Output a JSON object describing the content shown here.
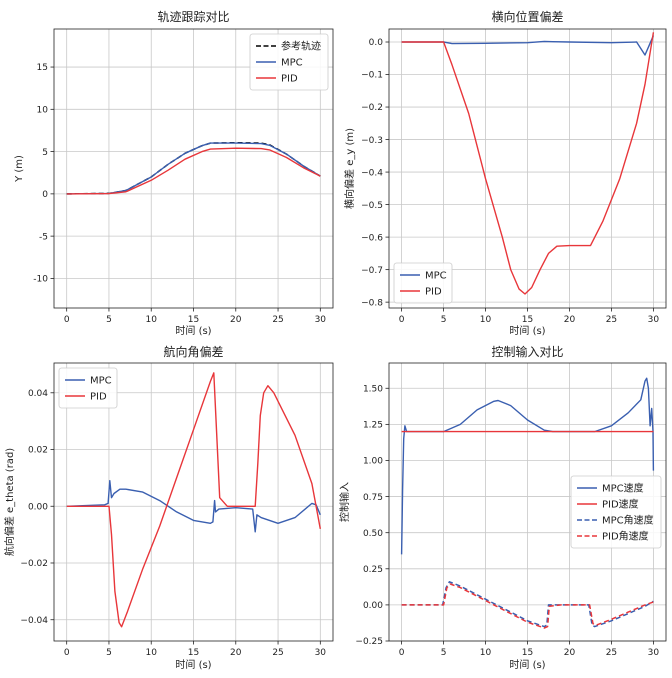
{
  "chart_data": [
    {
      "type": "line",
      "title": "轨迹跟踪对比",
      "xlabel": "时间 (s)",
      "ylabel": "Y (m)",
      "xlim": [
        -1.5,
        31.5
      ],
      "ylim": [
        -13.5,
        19.5
      ],
      "xticks": [
        0,
        5,
        10,
        15,
        20,
        25,
        30
      ],
      "yticks": [
        -10,
        -5,
        0,
        5,
        10,
        15
      ],
      "legend": "top-right",
      "series": [
        {
          "name": "参考轨迹",
          "color": "#000000",
          "dash": "dashed",
          "points": [
            [
              0,
              0
            ],
            [
              5,
              0.05
            ],
            [
              7,
              0.4
            ],
            [
              10,
              2.0
            ],
            [
              12,
              3.5
            ],
            [
              14,
              4.8
            ],
            [
              16,
              5.7
            ],
            [
              17,
              6.0
            ],
            [
              20,
              6.05
            ],
            [
              23,
              6.0
            ],
            [
              24,
              5.8
            ],
            [
              26,
              4.7
            ],
            [
              28,
              3.3
            ],
            [
              30,
              2.1
            ]
          ]
        },
        {
          "name": "MPC",
          "color": "#3a5fb0",
          "dash": "solid",
          "points": [
            [
              0,
              0
            ],
            [
              5,
              0.05
            ],
            [
              7,
              0.4
            ],
            [
              10,
              2.0
            ],
            [
              12,
              3.5
            ],
            [
              14,
              4.8
            ],
            [
              16,
              5.7
            ],
            [
              17,
              6.0
            ],
            [
              20,
              6.0
            ],
            [
              23,
              5.95
            ],
            [
              24,
              5.75
            ],
            [
              26,
              4.7
            ],
            [
              28,
              3.3
            ],
            [
              30,
              2.1
            ]
          ]
        },
        {
          "name": "PID",
          "color": "#e8363a",
          "dash": "solid",
          "points": [
            [
              0,
              0
            ],
            [
              5,
              0.03
            ],
            [
              7,
              0.25
            ],
            [
              10,
              1.6
            ],
            [
              12,
              2.8
            ],
            [
              14,
              4.1
            ],
            [
              16,
              5.0
            ],
            [
              17,
              5.3
            ],
            [
              20,
              5.4
            ],
            [
              23,
              5.35
            ],
            [
              24,
              5.2
            ],
            [
              26,
              4.3
            ],
            [
              28,
              3.1
            ],
            [
              30,
              2.1
            ]
          ]
        }
      ]
    },
    {
      "type": "line",
      "title": "横向位置偏差",
      "xlabel": "时间 (s)",
      "ylabel": "横向偏差 e_y (m)",
      "xlim": [
        -1.5,
        31.5
      ],
      "ylim": [
        -0.818,
        0.04
      ],
      "xticks": [
        0,
        5,
        10,
        15,
        20,
        25,
        30
      ],
      "yticks": [
        0.0,
        -0.1,
        -0.2,
        -0.3,
        -0.4,
        -0.5,
        -0.6,
        -0.7,
        -0.8
      ],
      "ytick_labels": [
        "0.0",
        "−0.1",
        "−0.2",
        "−0.3",
        "−0.4",
        "−0.5",
        "−0.6",
        "−0.7",
        "−0.8"
      ],
      "legend": "bottom-left",
      "series": [
        {
          "name": "MPC",
          "color": "#3a5fb0",
          "dash": "solid",
          "points": [
            [
              0,
              0
            ],
            [
              5,
              0
            ],
            [
              6,
              -0.005
            ],
            [
              10,
              -0.004
            ],
            [
              15,
              -0.002
            ],
            [
              17,
              0.002
            ],
            [
              18,
              0.001
            ],
            [
              20,
              0
            ],
            [
              25,
              -0.002
            ],
            [
              28,
              0
            ],
            [
              28.5,
              -0.02
            ],
            [
              29,
              -0.04
            ],
            [
              29.5,
              -0.01
            ],
            [
              30,
              0.02
            ]
          ]
        },
        {
          "name": "PID",
          "color": "#e8363a",
          "dash": "solid",
          "points": [
            [
              0,
              0
            ],
            [
              5,
              0
            ],
            [
              6,
              -0.07
            ],
            [
              8,
              -0.22
            ],
            [
              10,
              -0.42
            ],
            [
              12,
              -0.6
            ],
            [
              13,
              -0.7
            ],
            [
              14,
              -0.76
            ],
            [
              14.7,
              -0.775
            ],
            [
              15.5,
              -0.755
            ],
            [
              16.5,
              -0.7
            ],
            [
              17.5,
              -0.65
            ],
            [
              18.5,
              -0.628
            ],
            [
              20,
              -0.626
            ],
            [
              22.5,
              -0.626
            ],
            [
              24,
              -0.55
            ],
            [
              26,
              -0.42
            ],
            [
              28,
              -0.25
            ],
            [
              29,
              -0.13
            ],
            [
              30,
              0.03
            ]
          ]
        }
      ]
    },
    {
      "type": "line",
      "title": "航向角偏差",
      "xlabel": "时间 (s)",
      "ylabel": "航向偏差 e_theta (rad)",
      "xlim": [
        -1.5,
        31.5
      ],
      "ylim": [
        -0.0475,
        0.0505
      ],
      "xticks": [
        0,
        5,
        10,
        15,
        20,
        25,
        30
      ],
      "yticks": [
        -0.04,
        -0.02,
        0.0,
        0.02,
        0.04
      ],
      "ytick_labels": [
        "−0.04",
        "−0.02",
        "0.00",
        "0.02",
        "0.04"
      ],
      "legend": "top-left",
      "series": [
        {
          "name": "MPC",
          "color": "#3a5fb0",
          "dash": "solid",
          "points": [
            [
              0,
              0
            ],
            [
              4.5,
              0.0005
            ],
            [
              4.9,
              0.001
            ],
            [
              5.1,
              0.009
            ],
            [
              5.3,
              0.003
            ],
            [
              5.6,
              0.0045
            ],
            [
              6.3,
              0.006
            ],
            [
              7,
              0.006
            ],
            [
              9,
              0.005
            ],
            [
              11,
              0.002
            ],
            [
              13,
              -0.002
            ],
            [
              15,
              -0.005
            ],
            [
              17,
              -0.006
            ],
            [
              17.3,
              -0.0055
            ],
            [
              17.5,
              0.002
            ],
            [
              17.6,
              -0.002
            ],
            [
              18,
              -0.001
            ],
            [
              20,
              -0.0005
            ],
            [
              22,
              -0.001
            ],
            [
              22.3,
              -0.009
            ],
            [
              22.5,
              -0.003
            ],
            [
              23,
              -0.004
            ],
            [
              25,
              -0.006
            ],
            [
              27,
              -0.004
            ],
            [
              29,
              0.001
            ],
            [
              29.5,
              0.0005
            ],
            [
              30,
              -0.003
            ]
          ]
        },
        {
          "name": "PID",
          "color": "#e8363a",
          "dash": "solid",
          "points": [
            [
              0,
              0
            ],
            [
              5,
              0
            ],
            [
              5.3,
              -0.01
            ],
            [
              5.7,
              -0.03
            ],
            [
              6.2,
              -0.041
            ],
            [
              6.5,
              -0.0425
            ],
            [
              7.2,
              -0.037
            ],
            [
              9,
              -0.022
            ],
            [
              11,
              -0.007
            ],
            [
              13,
              0.01
            ],
            [
              15,
              0.027
            ],
            [
              17,
              0.044
            ],
            [
              17.4,
              0.047
            ],
            [
              18.1,
              0.003
            ],
            [
              19,
              0.0
            ],
            [
              22.3,
              0.0
            ],
            [
              22.6,
              0.015
            ],
            [
              22.9,
              0.032
            ],
            [
              23.3,
              0.04
            ],
            [
              23.8,
              0.0425
            ],
            [
              24.5,
              0.04
            ],
            [
              27,
              0.025
            ],
            [
              29,
              0.008
            ],
            [
              30,
              -0.008
            ]
          ]
        }
      ]
    },
    {
      "type": "line",
      "title": "控制输入对比",
      "xlabel": "时间 (s)",
      "ylabel": "控制输入",
      "xlim": [
        -1.5,
        31.5
      ],
      "ylim": [
        -0.25,
        1.675
      ],
      "xticks": [
        0,
        5,
        10,
        15,
        20,
        25,
        30
      ],
      "yticks": [
        -0.25,
        0.0,
        0.25,
        0.5,
        0.75,
        1.0,
        1.25,
        1.5
      ],
      "ytick_labels": [
        "−0.25",
        "0.00",
        "0.25",
        "0.50",
        "0.75",
        "1.00",
        "1.25",
        "1.50"
      ],
      "legend": "center-right",
      "series": [
        {
          "name": "MPC速度",
          "color": "#3a5fb0",
          "dash": "solid",
          "points": [
            [
              0,
              0.35
            ],
            [
              0.12,
              0.8
            ],
            [
              0.25,
              1.15
            ],
            [
              0.4,
              1.24
            ],
            [
              0.6,
              1.2
            ],
            [
              5,
              1.2
            ],
            [
              7,
              1.25
            ],
            [
              9,
              1.35
            ],
            [
              11,
              1.41
            ],
            [
              11.5,
              1.415
            ],
            [
              13,
              1.38
            ],
            [
              15,
              1.28
            ],
            [
              17,
              1.21
            ],
            [
              18,
              1.2
            ],
            [
              23,
              1.2
            ],
            [
              25,
              1.24
            ],
            [
              27,
              1.33
            ],
            [
              28.5,
              1.42
            ],
            [
              29,
              1.55
            ],
            [
              29.2,
              1.57
            ],
            [
              29.4,
              1.5
            ],
            [
              29.6,
              1.24
            ],
            [
              29.8,
              1.36
            ],
            [
              29.95,
              1.2
            ],
            [
              30,
              0.93
            ]
          ]
        },
        {
          "name": "PID速度",
          "color": "#e8363a",
          "dash": "solid",
          "points": [
            [
              0,
              1.2
            ],
            [
              30,
              1.2
            ]
          ]
        },
        {
          "name": "MPC角速度",
          "color": "#3a5fb0",
          "dash": "dashed",
          "points": [
            [
              0,
              0
            ],
            [
              4.9,
              0
            ],
            [
              5.3,
              0.12
            ],
            [
              5.7,
              0.16
            ],
            [
              7,
              0.13
            ],
            [
              9,
              0.07
            ],
            [
              11,
              0.01
            ],
            [
              13,
              -0.05
            ],
            [
              15,
              -0.11
            ],
            [
              17,
              -0.15
            ],
            [
              17.3,
              -0.14
            ],
            [
              17.5,
              0.0
            ],
            [
              19,
              0.0
            ],
            [
              22.3,
              0.0
            ],
            [
              22.7,
              -0.14
            ],
            [
              23,
              -0.15
            ],
            [
              25,
              -0.11
            ],
            [
              27,
              -0.06
            ],
            [
              29,
              -0.01
            ],
            [
              30,
              0.025
            ]
          ]
        },
        {
          "name": "PID角速度",
          "color": "#e8363a",
          "dash": "dashed",
          "points": [
            [
              0,
              0
            ],
            [
              5,
              0
            ],
            [
              5.4,
              0.12
            ],
            [
              5.8,
              0.145
            ],
            [
              7,
              0.12
            ],
            [
              9,
              0.06
            ],
            [
              11,
              0.0
            ],
            [
              13,
              -0.06
            ],
            [
              15,
              -0.12
            ],
            [
              17,
              -0.16
            ],
            [
              17.4,
              -0.15
            ],
            [
              17.6,
              -0.01
            ],
            [
              19,
              0.0
            ],
            [
              22.4,
              0.0
            ],
            [
              22.8,
              -0.13
            ],
            [
              23.2,
              -0.14
            ],
            [
              25,
              -0.1
            ],
            [
              27,
              -0.05
            ],
            [
              29,
              0.0
            ],
            [
              30,
              0.02
            ]
          ]
        }
      ]
    }
  ]
}
